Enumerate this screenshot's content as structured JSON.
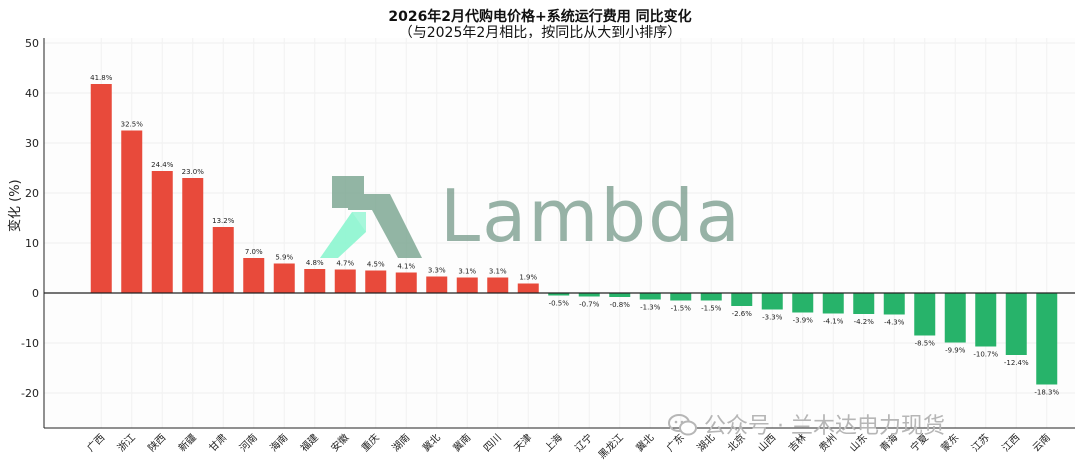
{
  "title": {
    "line1": "2026年2月代购电价格+系统运行费用 同比变化",
    "line2": "（与2025年2月相比，按同比从大到小排序）"
  },
  "watermark": {
    "text": "Lambda",
    "colors": [
      "#8cf5cf",
      "#7fa894"
    ]
  },
  "footer": {
    "text": "公众号 · 兰木达电力现货"
  },
  "colors": {
    "positive": "#e84a3b",
    "negative": "#27b36a",
    "axis": "#222222",
    "grid": "#eeeeee"
  },
  "chart_data": {
    "type": "bar",
    "ylabel": "变化 (%)",
    "ylim": [
      -27,
      51
    ],
    "yticks": [
      50,
      40,
      30,
      20,
      10,
      0,
      -10,
      -20
    ],
    "grid": true,
    "categories": [
      "广西",
      "浙江",
      "陕西",
      "新疆",
      "甘肃",
      "河南",
      "海南",
      "福建",
      "安徽",
      "重庆",
      "湖南",
      "冀北",
      "冀南",
      "四川",
      "天津",
      "上海",
      "辽宁",
      "黑龙江",
      "冀北",
      "广东",
      "湖北",
      "北京",
      "山西",
      "吉林",
      "贵州",
      "山东",
      "青海",
      "宁夏",
      "蒙东",
      "江苏",
      "江西",
      "云南"
    ],
    "values": [
      41.8,
      32.5,
      24.4,
      23.0,
      13.2,
      7.0,
      5.9,
      4.8,
      4.7,
      4.5,
      4.1,
      3.3,
      3.1,
      3.1,
      1.9,
      -0.5,
      -0.7,
      -0.8,
      -1.3,
      -1.5,
      -1.5,
      -2.6,
      -3.3,
      -3.9,
      -4.1,
      -4.2,
      -4.3,
      -8.5,
      -9.9,
      -10.7,
      -12.4,
      -18.3
    ],
    "labels": [
      "41.8%",
      "32.5%",
      "24.4%",
      "23.0%",
      "13.2%",
      "7.0%",
      "5.9%",
      "4.8%",
      "4.7%",
      "4.5%",
      "4.1%",
      "3.3%",
      "3.1%",
      "3.1%",
      "1.9%",
      "-0.5%",
      "-0.7%",
      "-0.8%",
      "-1.3%",
      "-1.5%",
      "-1.5%",
      "-2.6%",
      "-3.3%",
      "-3.9%",
      "-4.1%",
      "-4.2%",
      "-4.3%",
      "-8.5%",
      "-9.9%",
      "-10.7%",
      "-12.4%",
      "-18.3%"
    ]
  }
}
